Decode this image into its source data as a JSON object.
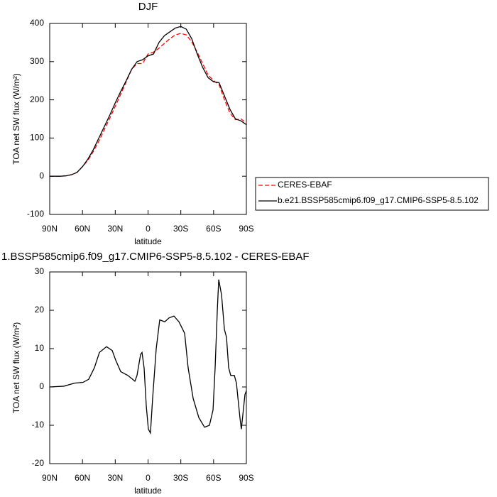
{
  "chart_data": [
    {
      "type": "line",
      "title": "DJF",
      "xlabel": "latitude",
      "ylabel": "TOA net SW flux (W/m²)",
      "x": [
        90,
        85,
        80,
        75,
        70,
        65,
        60,
        55,
        50,
        45,
        40,
        35,
        30,
        25,
        20,
        15,
        10,
        5,
        0,
        -5,
        -10,
        -15,
        -20,
        -25,
        -30,
        -35,
        -40,
        -45,
        -50,
        -55,
        -60,
        -65,
        -70,
        -75,
        -80,
        -85,
        -90
      ],
      "xlim": [
        90,
        -90
      ],
      "xticks": [
        {
          "value": 90,
          "label": "90N"
        },
        {
          "value": 60,
          "label": "60N"
        },
        {
          "value": 30,
          "label": "30N"
        },
        0,
        {
          "value": -30,
          "label": "30S"
        },
        {
          "value": -60,
          "label": "60S"
        },
        {
          "value": -90,
          "label": "90S"
        }
      ],
      "ylim": [
        -100,
        400
      ],
      "yticks": [
        -100,
        0,
        100,
        200,
        300,
        400
      ],
      "legend": "right",
      "series": [
        {
          "name": "CERES-EBAF",
          "color": "#ff0000",
          "dashed": true,
          "values": [
            0,
            0,
            0,
            1,
            4,
            10,
            25,
            42,
            65,
            92,
            122,
            152,
            183,
            215,
            247,
            280,
            295,
            295,
            320,
            325,
            335,
            348,
            360,
            370,
            374,
            370,
            352,
            325,
            295,
            265,
            250,
            240,
            200,
            165,
            148,
            150,
            140
          ]
        },
        {
          "name": "b.e21.BSSP585cmip6.f09_g17.CMIP6-SSP5-8.5.102",
          "color": "#000000",
          "dashed": false,
          "values": [
            0,
            0,
            0,
            1,
            4,
            10,
            25,
            45,
            70,
            100,
            130,
            160,
            192,
            222,
            250,
            280,
            300,
            305,
            315,
            320,
            350,
            368,
            378,
            388,
            392,
            385,
            360,
            320,
            285,
            258,
            247,
            245,
            210,
            175,
            150,
            145,
            135
          ]
        }
      ]
    },
    {
      "type": "line",
      "title": "1.BSSP585cmip6.f09_g17.CMIP6-SSP5-8.5.102 - CERES-EBAF",
      "xlabel": "latitude",
      "ylabel": "TOA net SW flux (W/m²)",
      "x": [
        90,
        77,
        67.3,
        59.5,
        54.3,
        49.1,
        44.5,
        38,
        32.8,
        29.6,
        25,
        18.5,
        12,
        10.1,
        6.8,
        5.5,
        3.6,
        1.6,
        -0.3,
        -2.2,
        -4.2,
        -7.5,
        -10.7,
        -15.3,
        -19.2,
        -23.7,
        -28.3,
        -33.5,
        -36.7,
        -41.3,
        -46.5,
        -51.7,
        -56.2,
        -59.5,
        -61.4,
        -63.4,
        -64.7,
        -67.3,
        -69.9,
        -71.8,
        -73.8,
        -75.7,
        -79,
        -80.9,
        -84.1,
        -85.4,
        -88.7,
        -90
      ],
      "xlim": [
        90,
        -90
      ],
      "xticks": [
        {
          "value": 90,
          "label": "90N"
        },
        {
          "value": 60,
          "label": "60N"
        },
        {
          "value": 30,
          "label": "30N"
        },
        0,
        {
          "value": -30,
          "label": "30S"
        },
        {
          "value": -60,
          "label": "60S"
        },
        {
          "value": -90,
          "label": "90S"
        }
      ],
      "ylim": [
        -20,
        30
      ],
      "yticks": [
        -20,
        -10,
        0,
        10,
        20,
        30
      ],
      "series": [
        {
          "color": "#000000",
          "dashed": false,
          "values": [
            0,
            0.2,
            1,
            1.2,
            2,
            5,
            9,
            10.5,
            9.5,
            7,
            4,
            3,
            1.5,
            3,
            8.5,
            9,
            5,
            -5,
            -11,
            -12,
            -3,
            10,
            17.5,
            17,
            18,
            18.5,
            17,
            14,
            5,
            -3,
            -8,
            -10.5,
            -10,
            -6,
            5,
            20,
            28,
            24,
            15,
            13,
            5,
            3,
            3,
            1,
            -8,
            -11,
            -2,
            -1
          ]
        }
      ]
    }
  ]
}
